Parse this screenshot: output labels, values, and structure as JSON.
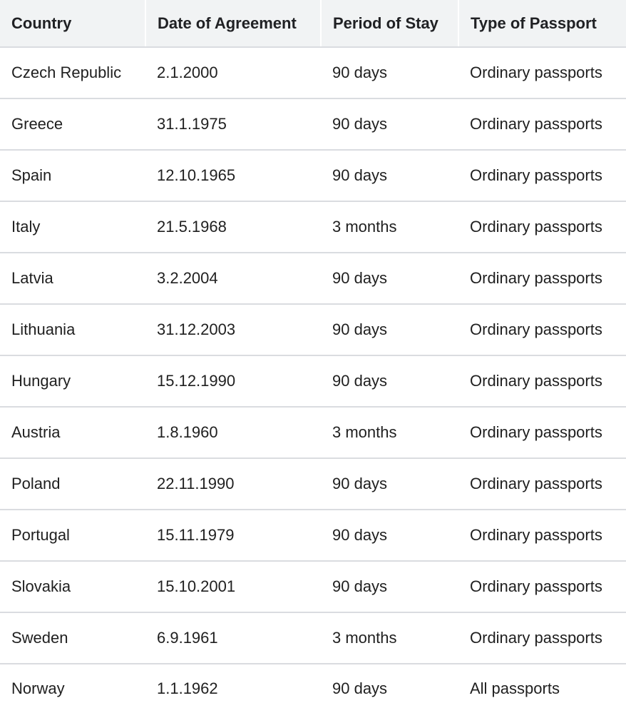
{
  "table": {
    "headers": [
      "Country",
      "Date of Agreement",
      "Period of Stay",
      "Type of Passport"
    ],
    "rows": [
      [
        "Czech Republic",
        "2.1.2000",
        "90 days",
        "Ordinary passports"
      ],
      [
        "Greece",
        "31.1.1975",
        "90 days",
        "Ordinary passports"
      ],
      [
        "Spain",
        "12.10.1965",
        "90 days",
        "Ordinary passports"
      ],
      [
        "Italy",
        "21.5.1968",
        "3 months",
        "Ordinary passports"
      ],
      [
        "Latvia",
        "3.2.2004",
        "90 days",
        "Ordinary passports"
      ],
      [
        "Lithuania",
        "31.12.2003",
        "90 days",
        "Ordinary passports"
      ],
      [
        "Hungary",
        "15.12.1990",
        "90 days",
        "Ordinary passports"
      ],
      [
        "Austria",
        "1.8.1960",
        "3 months",
        "Ordinary passports"
      ],
      [
        "Poland",
        "22.11.1990",
        "90 days",
        "Ordinary passports"
      ],
      [
        "Portugal",
        "15.11.1979",
        "90 days",
        "Ordinary passports"
      ],
      [
        "Slovakia",
        "15.10.2001",
        "90 days",
        "Ordinary passports"
      ],
      [
        "Sweden",
        "6.9.1961",
        "3 months",
        "Ordinary passports"
      ],
      [
        "Norway",
        "1.1.1962",
        "90 days",
        "All passports"
      ]
    ]
  }
}
